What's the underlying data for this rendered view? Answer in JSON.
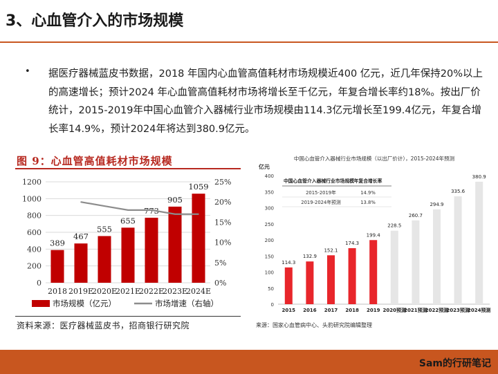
{
  "header": {
    "title": "3、心血管介入的市场规模"
  },
  "bullet": {
    "symbol": "•",
    "text": "据医疗器械蓝皮书数据，2018 年国内心血管高值耗材市场规模近400 亿元，近几年保持20%以上的高速增长；预计2024 年心血管高值耗材市场将增长至千亿元，年复合增长率约18%。按出厂价统计，2015-2019年中国心血管介入器械行业市场规模由114.3亿元增长至199.4亿元，年复合增长率14.9%，预计2024年将达到380.9亿元。"
  },
  "left_figure": {
    "title": "图 9：心血管高值耗材市场规模",
    "source": "资料来源：医疗器械蓝皮书，招商银行研究院"
  },
  "right_figure": {
    "source": "来源：国家心血管病中心、头豹研究院编辑整理",
    "table_header": [
      "中国心血管介入器械行业市场规模",
      "年复合增长率"
    ],
    "table_rows": [
      [
        "2015-2019年",
        "14.9%"
      ],
      [
        "2019-2024年预测",
        "13.8%"
      ]
    ]
  },
  "footer": {
    "text": "Sam的行研笔记"
  },
  "colors": {
    "accent": "#c8561f",
    "bar_red": "#c00000",
    "line_gray": "#8c8c8c",
    "bar_light": "#e6e6e6",
    "bar_bright": "#e8262b"
  },
  "chart_data": [
    {
      "type": "bar",
      "title": "",
      "categories": [
        "2018",
        "2019E",
        "2020E",
        "2021E",
        "2022E",
        "2023E",
        "2024E"
      ],
      "series": [
        {
          "name": "市场规模（亿元）",
          "axis": "left",
          "kind": "bar",
          "values": [
            389,
            467,
            555,
            655,
            773,
            905,
            1059
          ]
        },
        {
          "name": "市场增速（右轴）",
          "axis": "right",
          "kind": "line",
          "values": [
            null,
            0.2,
            0.19,
            0.18,
            0.18,
            0.17,
            0.17
          ]
        }
      ],
      "ylim": [
        0,
        1200
      ],
      "yticks": [
        0,
        200,
        400,
        600,
        800,
        1000,
        1200
      ],
      "y2lim": [
        0,
        0.25
      ],
      "y2ticks": [
        "0%",
        "5%",
        "10%",
        "15%",
        "20%",
        "25%"
      ],
      "grid": true,
      "legend": "bottom"
    },
    {
      "type": "bar",
      "title": "中国心血管介入器械行业市场规模（以出厂价计），2015-2024年预测",
      "ylabel": "亿元",
      "categories": [
        "2015",
        "2016",
        "2017",
        "2018",
        "2019",
        "2020预测",
        "2021预测",
        "2022预测",
        "2023预测",
        "2024预测"
      ],
      "series": [
        {
          "name": "",
          "values": [
            114.3,
            132.9,
            152.1,
            174.3,
            199.4,
            228.5,
            260.7,
            294.9,
            335.6,
            380.9
          ]
        }
      ],
      "ylim": [
        0,
        400
      ],
      "yticks": [
        0,
        50,
        100,
        150,
        200,
        250,
        300,
        350,
        400
      ],
      "grid": false,
      "legend": "none"
    }
  ]
}
